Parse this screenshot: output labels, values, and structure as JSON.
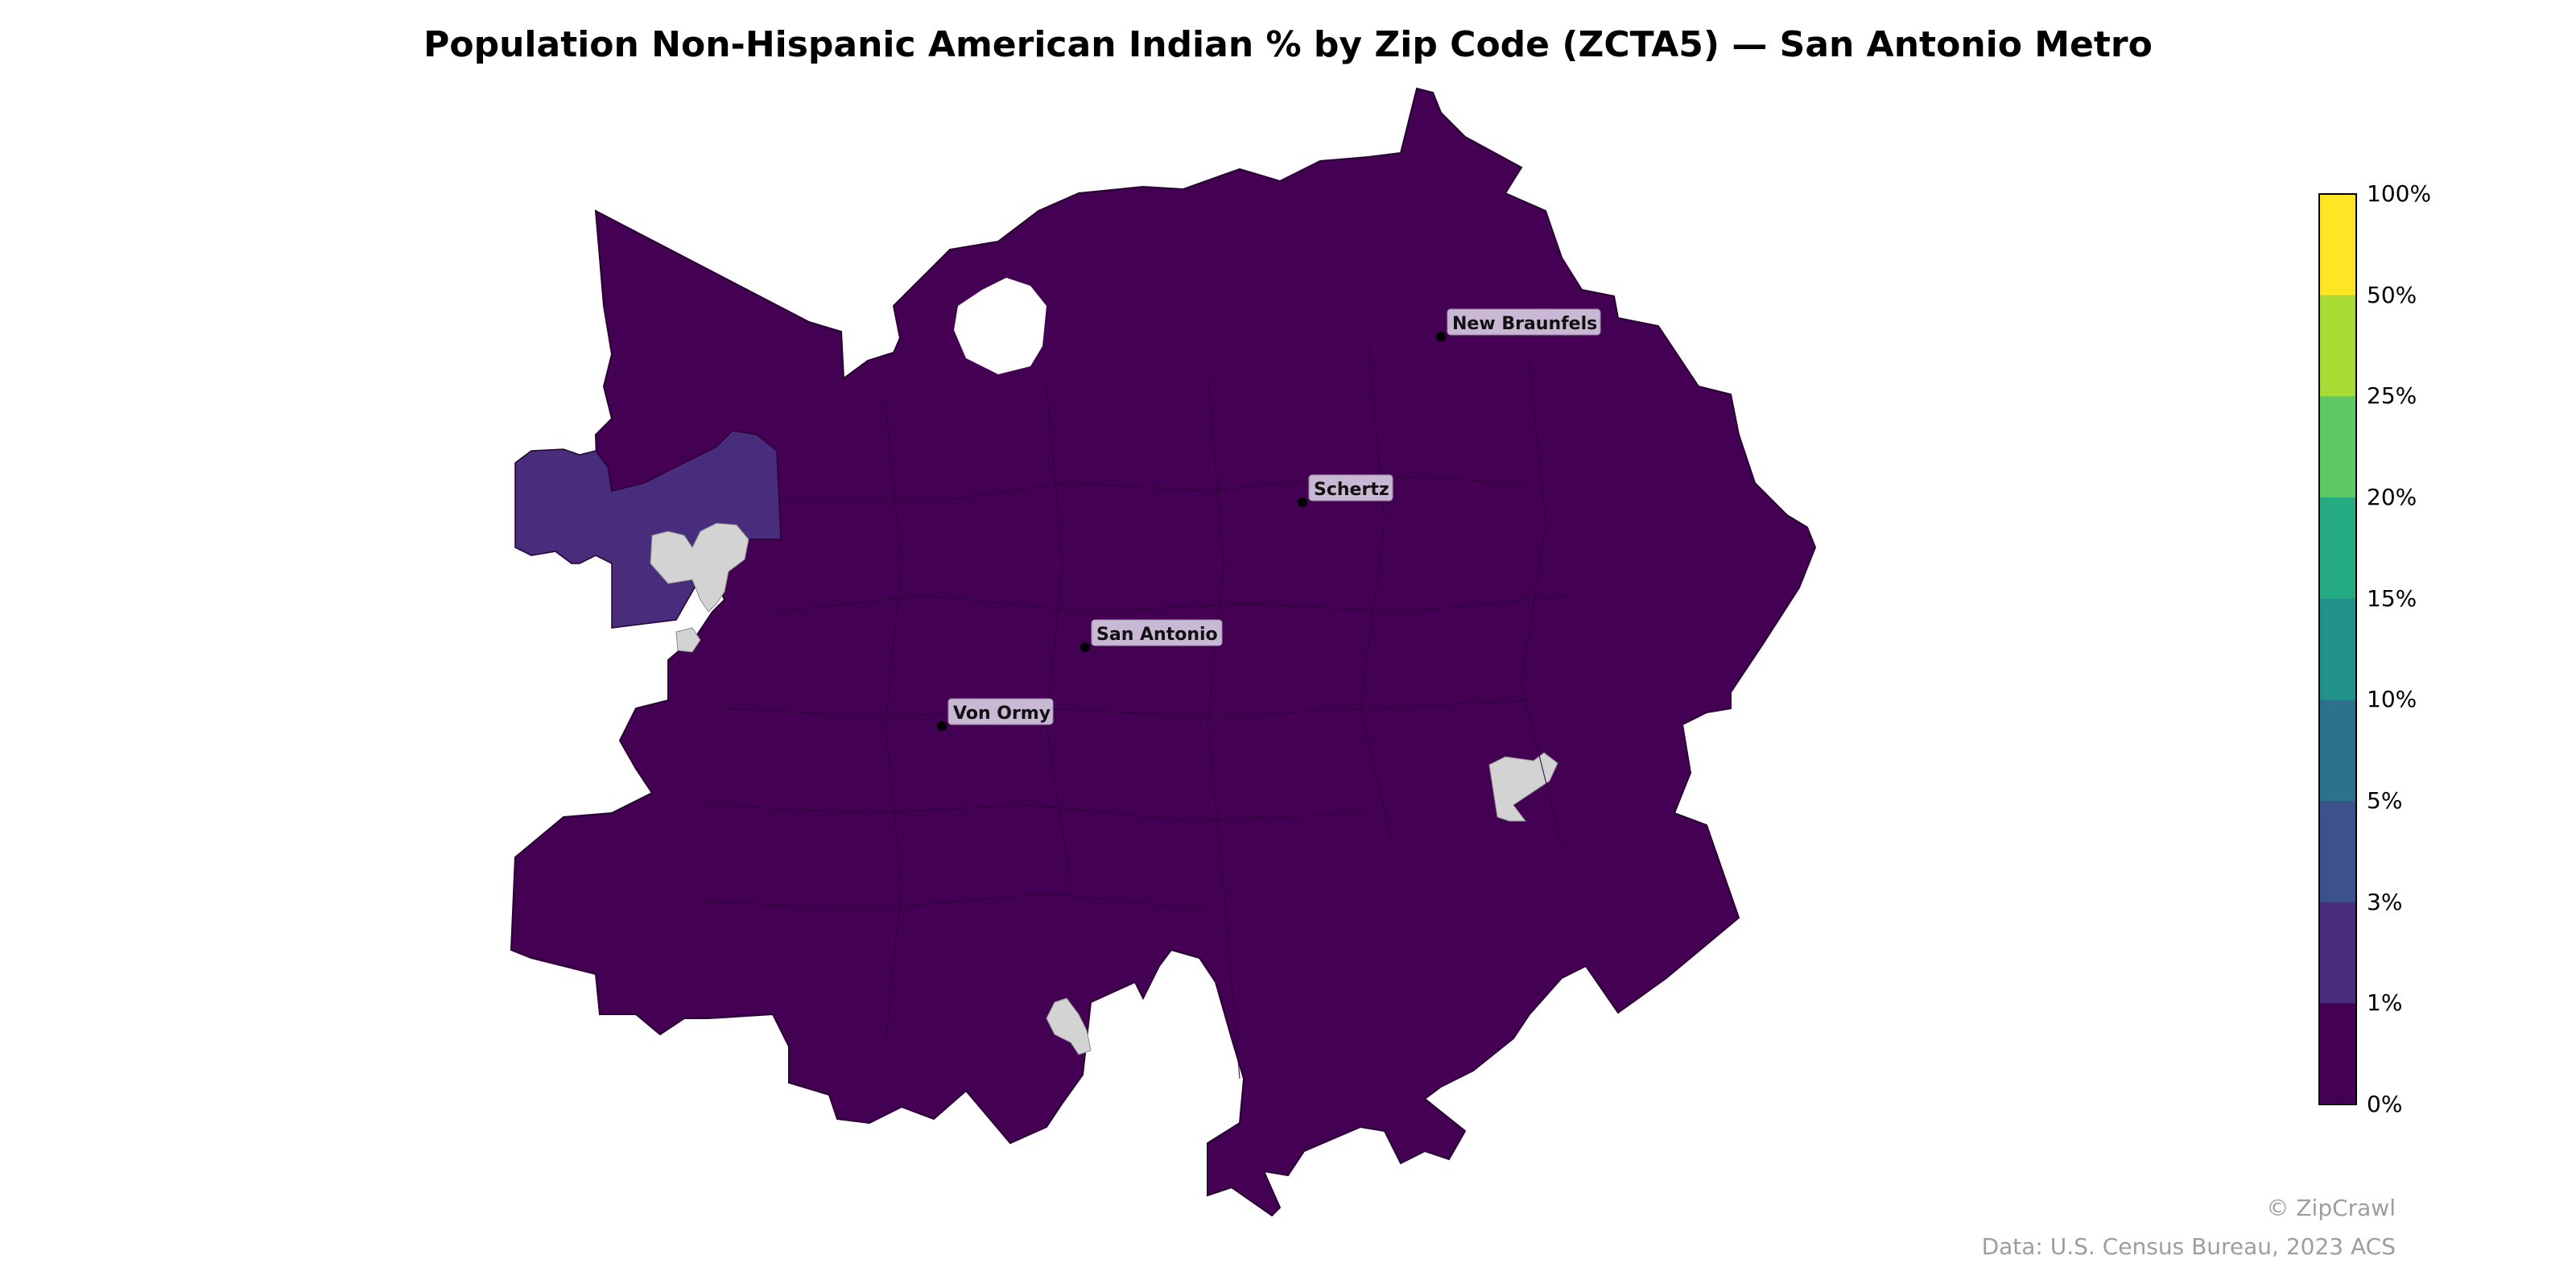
{
  "title": "Population Non-Hispanic American Indian % by Zip Code (ZCTA5) — San Antonio Metro",
  "colors": {
    "base_fill": "#440154",
    "elevated_fill": "#472d7b",
    "no_data_fill": "#d3d3d3",
    "boundary": "#2a0035"
  },
  "cities": [
    {
      "name": "New Braunfels"
    },
    {
      "name": "Schertz"
    },
    {
      "name": "San Antonio"
    },
    {
      "name": "Von Ormy"
    }
  ],
  "legend": {
    "ticks": [
      "100%",
      "50%",
      "25%",
      "20%",
      "15%",
      "10%",
      "5%",
      "3%",
      "1%",
      "0%"
    ],
    "bin_colors": [
      "#fde725",
      "#a8db34",
      "#5ec962",
      "#25ab82",
      "#21918c",
      "#2c728e",
      "#3b528b",
      "#472d7b",
      "#440154"
    ]
  },
  "credit": "© ZipCrawl",
  "source": "Data: U.S. Census Bureau, 2023 ACS"
}
